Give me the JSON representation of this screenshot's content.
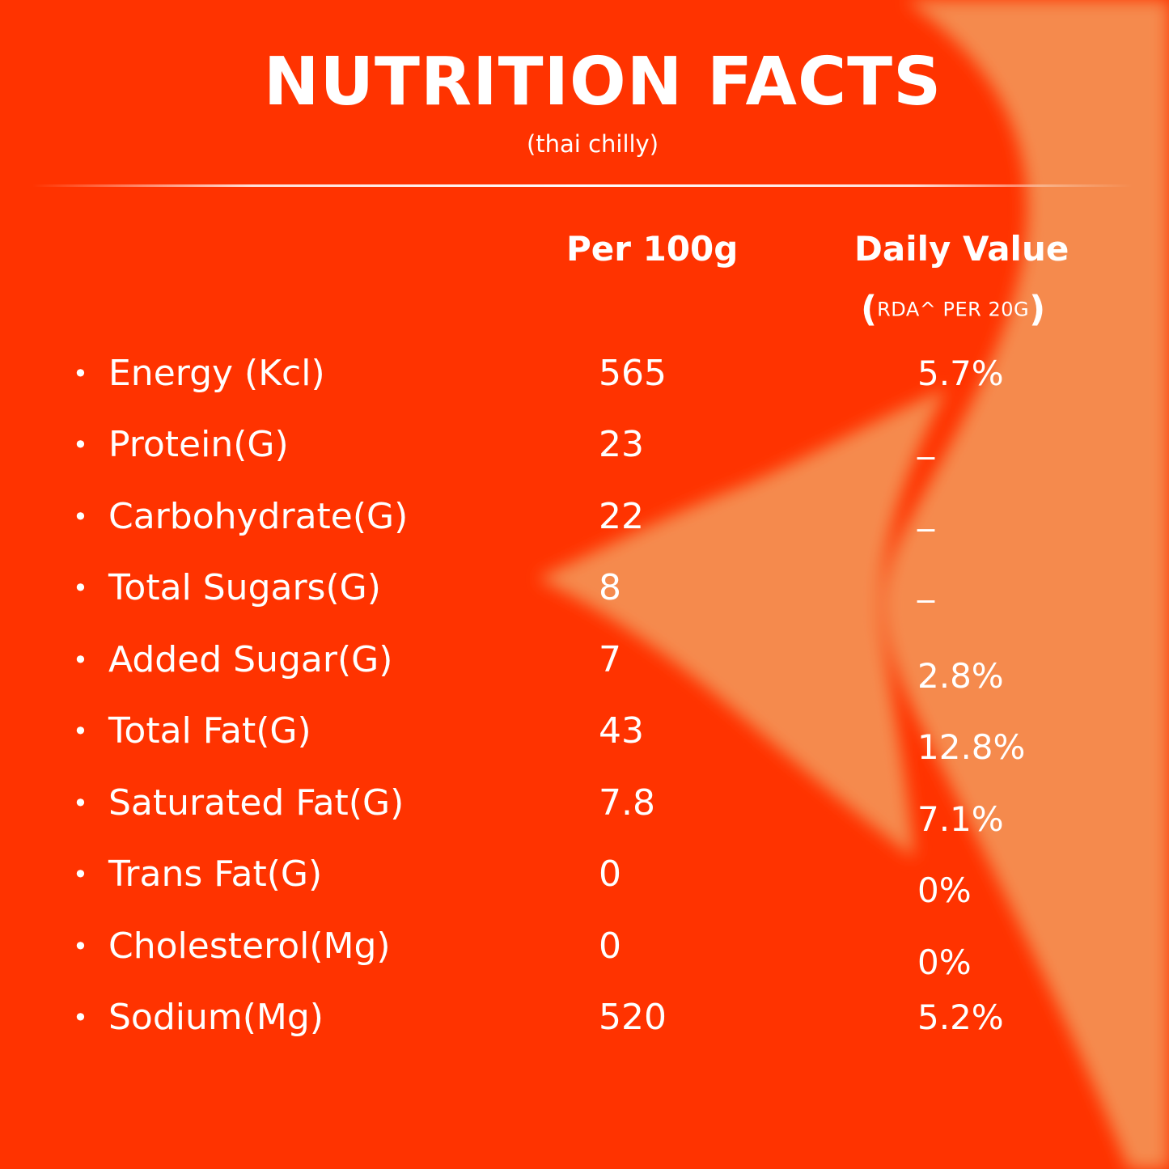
{
  "header": {
    "title": "NUTRITION FACTS",
    "subtitle": "(thai chilly)"
  },
  "columns": {
    "per_100g": "Per 100g",
    "daily_value": "Daily Value",
    "rda_open": "(",
    "rda_note": "RDA^ PER 20G",
    "rda_close": ")"
  },
  "colors": {
    "background": "#ff3300",
    "accent_shape": "#f58a4e",
    "text": "#ffffff"
  },
  "rows": [
    {
      "bullet": "•",
      "nutrient": "Energy (Kcl)",
      "per_100g": "565",
      "daily_value": "5.7%"
    },
    {
      "bullet": "•",
      "nutrient": "Protein(G)",
      "per_100g": "23",
      "daily_value": "_"
    },
    {
      "bullet": "•",
      "nutrient": "Carbohydrate(G)",
      "per_100g": "22",
      "daily_value": "_"
    },
    {
      "bullet": "•",
      "nutrient": "Total Sugars(G)",
      "per_100g": "8",
      "daily_value": "_"
    },
    {
      "bullet": "•",
      "nutrient": "Added Sugar(G)",
      "per_100g": "7",
      "daily_value": "2.8%"
    },
    {
      "bullet": "•",
      "nutrient": "Total Fat(G)",
      "per_100g": "43",
      "daily_value": "12.8%"
    },
    {
      "bullet": "•",
      "nutrient": "Saturated Fat(G)",
      "per_100g": "7.8",
      "daily_value": "7.1%"
    },
    {
      "bullet": "•",
      "nutrient": "Trans Fat(G)",
      "per_100g": "0",
      "daily_value": "0%"
    },
    {
      "bullet": "•",
      "nutrient": "Cholesterol(Mg)",
      "per_100g": "0",
      "daily_value": "0%"
    },
    {
      "bullet": "•",
      "nutrient": "Sodium(Mg)",
      "per_100g": "520",
      "daily_value": "5.2%"
    }
  ]
}
